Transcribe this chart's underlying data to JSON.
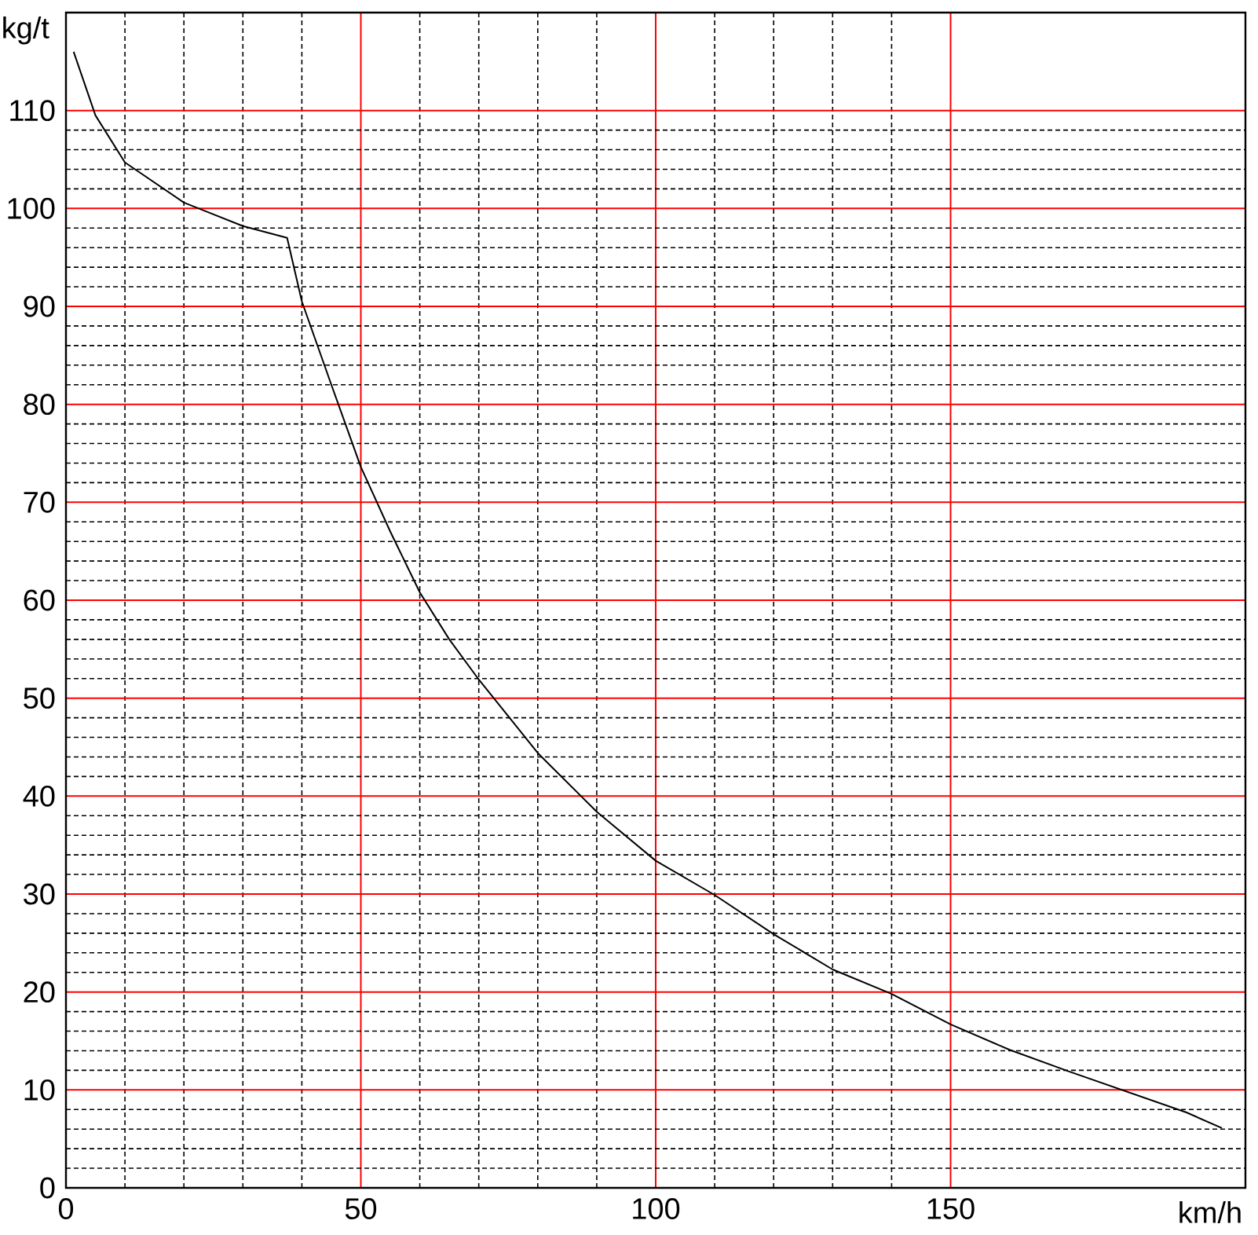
{
  "chart_data": {
    "type": "line",
    "xlabel": "km/h",
    "ylabel": "kg/t",
    "x": [
      1.3,
      5,
      10,
      20,
      30,
      37.5,
      40,
      45,
      50,
      55,
      60,
      65,
      70,
      80,
      90,
      100,
      110,
      120,
      130,
      140,
      150,
      160,
      170,
      180,
      190,
      196
    ],
    "series": [
      {
        "color": "#000000",
        "values": [
          116,
          109.5,
          104.7,
          100.6,
          98.2,
          97,
          90.5,
          82,
          73.6,
          67,
          60.8,
          56,
          51.9,
          44.4,
          38.4,
          33.4,
          29.9,
          25.9,
          22.3,
          19.8,
          16.7,
          14.1,
          11.9,
          9.8,
          7.7,
          6.1
        ]
      }
    ],
    "xlim": [
      0,
      200
    ],
    "ylim": [
      0,
      120
    ],
    "xticks": [
      0,
      50,
      100,
      150
    ],
    "yticks": [
      0,
      10,
      20,
      30,
      40,
      50,
      60,
      70,
      80,
      90,
      100,
      110
    ],
    "grid": true
  }
}
